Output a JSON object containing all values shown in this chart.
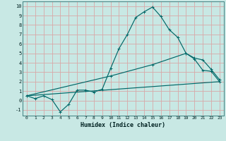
{
  "xlabel": "Humidex (Indice chaleur)",
  "bg_color": "#c8e8e4",
  "grid_color": "#d8a8a8",
  "line_color": "#006868",
  "xlim": [
    -0.5,
    23.5
  ],
  "ylim": [
    -1.6,
    10.5
  ],
  "xticks": [
    0,
    1,
    2,
    3,
    4,
    5,
    6,
    7,
    8,
    9,
    10,
    11,
    12,
    13,
    14,
    15,
    16,
    17,
    18,
    19,
    20,
    21,
    22,
    23
  ],
  "yticks": [
    -1,
    0,
    1,
    2,
    3,
    4,
    5,
    6,
    7,
    8,
    9,
    10
  ],
  "line1_x": [
    0,
    1,
    2,
    3,
    4,
    5,
    6,
    7,
    8,
    9,
    10,
    11,
    12,
    13,
    14,
    15,
    16,
    17,
    18,
    19,
    20,
    21,
    22,
    23
  ],
  "line1_y": [
    0.5,
    0.2,
    0.5,
    0.1,
    -1.2,
    -0.4,
    1.1,
    1.1,
    0.9,
    1.2,
    3.4,
    5.5,
    7.0,
    8.8,
    9.4,
    9.9,
    8.9,
    7.5,
    6.7,
    5.0,
    4.4,
    3.2,
    3.1,
    2.0
  ],
  "line2_x": [
    0,
    10,
    15,
    19,
    20,
    21,
    22,
    23
  ],
  "line2_y": [
    0.5,
    2.6,
    3.8,
    5.0,
    4.5,
    4.3,
    3.3,
    2.2
  ],
  "line3_x": [
    0,
    23
  ],
  "line3_y": [
    0.5,
    2.0
  ]
}
